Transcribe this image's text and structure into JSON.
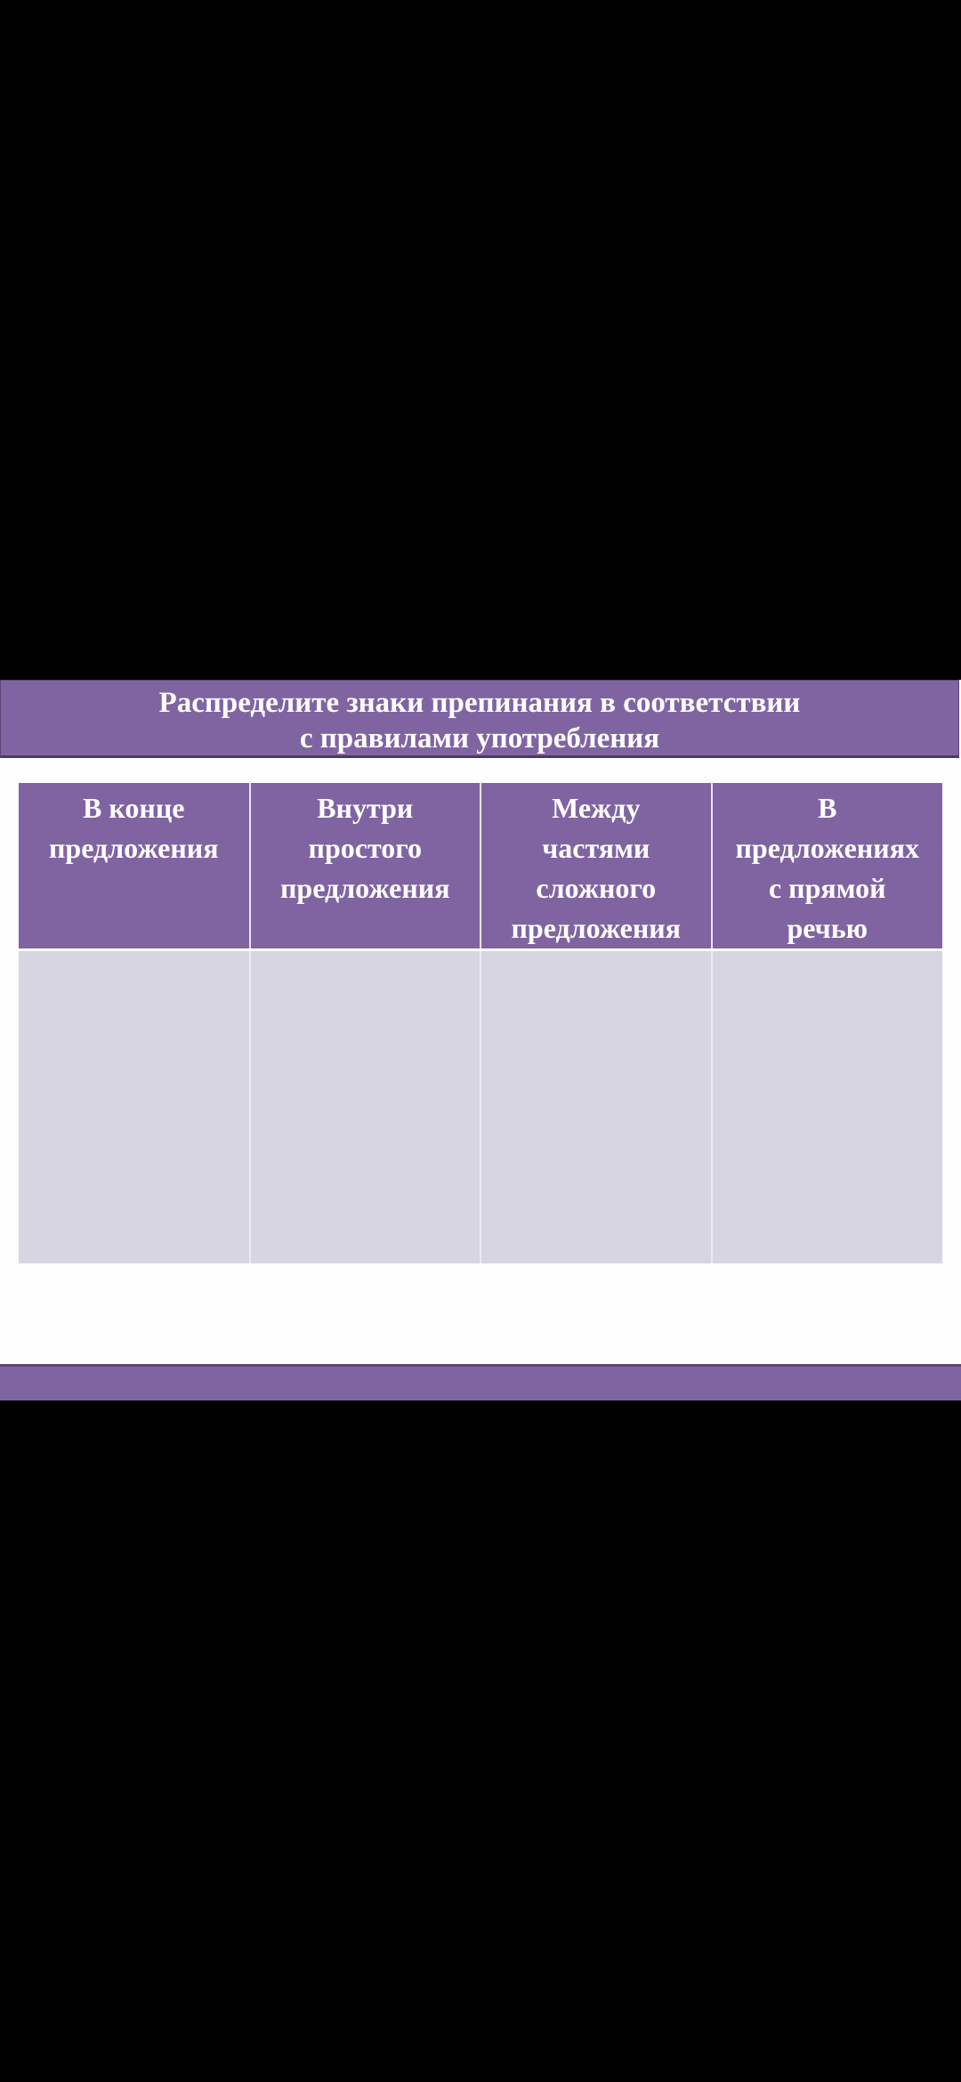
{
  "slide": {
    "title_lines": [
      "Распределите знаки препинания в соответствии",
      "с правилами употребления"
    ],
    "table": {
      "headers": [
        [
          "В конце",
          "предложения"
        ],
        [
          "Внутри",
          "простого",
          "предложения"
        ],
        [
          "Между",
          "частями",
          "сложного",
          "предложения"
        ],
        [
          "В",
          "предложениях",
          "с прямой",
          "речью"
        ]
      ],
      "rows": [
        [
          "",
          "",
          "",
          ""
        ]
      ]
    }
  },
  "colors": {
    "accent": "#8064a2",
    "cell": "#d8d5e3"
  }
}
